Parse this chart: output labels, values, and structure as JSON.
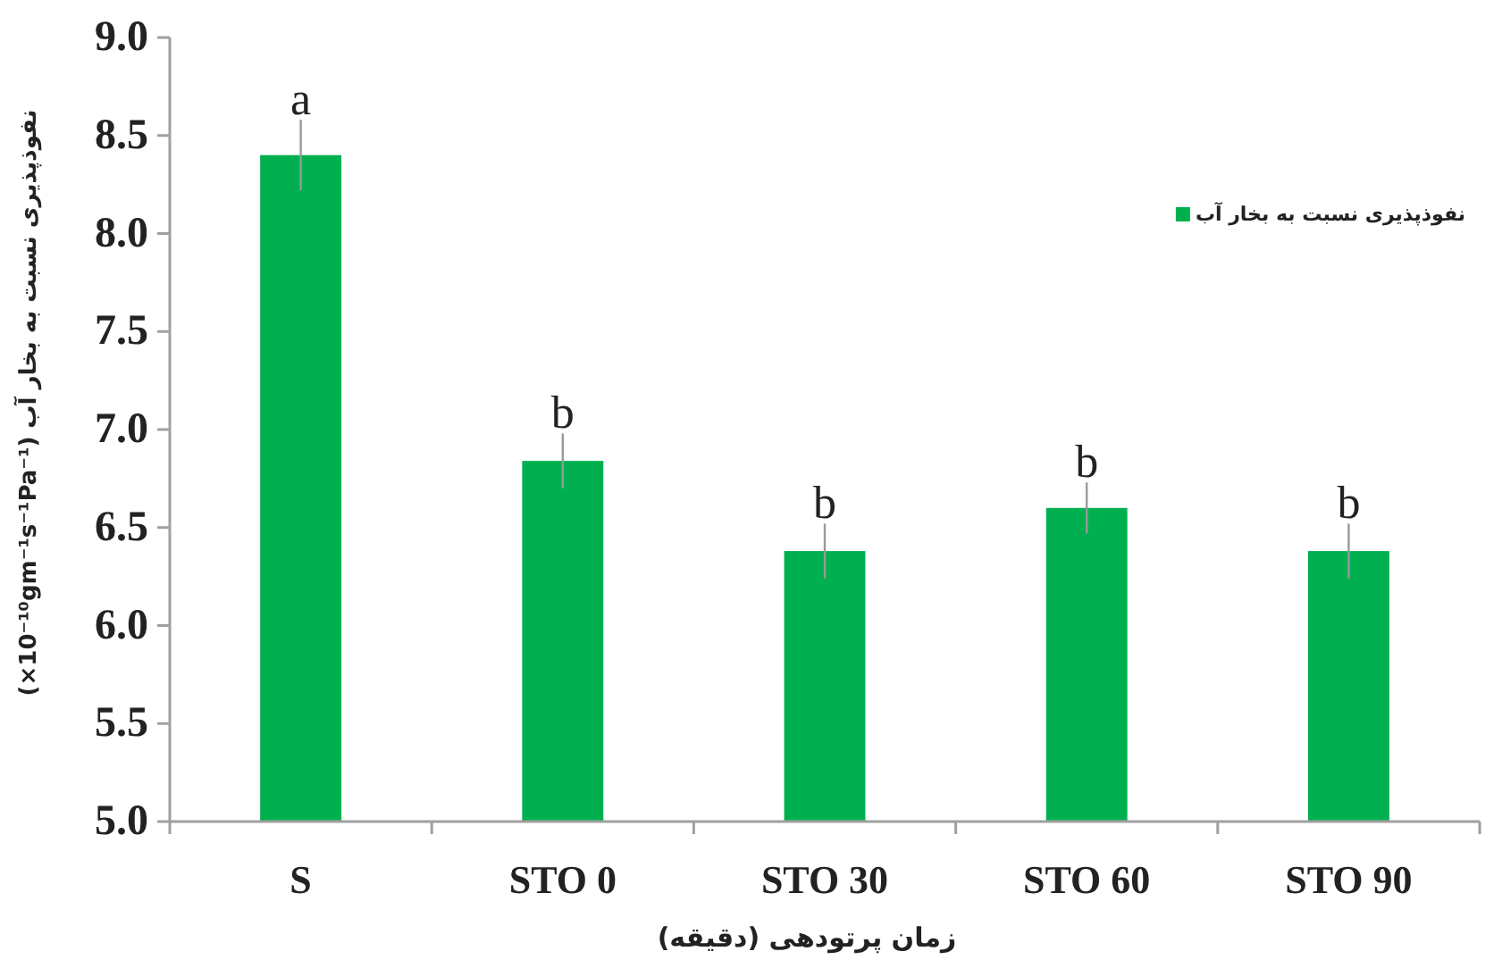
{
  "chart_data": {
    "type": "bar",
    "xlabel": "زمان پرتودهی (دقیقه)",
    "ylabel": "نفوذپذیری نسبت به بخار آب (×10⁻¹⁰gm⁻¹s⁻¹Pa⁻¹)",
    "categories": [
      "S",
      "STO 0",
      "STO 30",
      "STO 60",
      "STO 90"
    ],
    "series": [
      {
        "name": "نفوذپذیری نسبت به بخار آب",
        "color": "#00b050",
        "values": [
          8.4,
          6.84,
          6.38,
          6.6,
          6.38
        ],
        "errors": [
          0.18,
          0.14,
          0.14,
          0.13,
          0.14
        ]
      }
    ],
    "ylim": [
      5.0,
      9.0
    ],
    "yticks": [
      {
        "value": 5.0,
        "label": "5.0"
      },
      {
        "value": 5.5,
        "label": "5.5"
      },
      {
        "value": 6.0,
        "label": "6.0"
      },
      {
        "value": 6.5,
        "label": "6.5"
      },
      {
        "value": 7.0,
        "label": "7.0"
      },
      {
        "value": 7.5,
        "label": "7.5"
      },
      {
        "value": 8.0,
        "label": "8.0"
      },
      {
        "value": 8.5,
        "label": "8.5"
      },
      {
        "value": 9.0,
        "label": "9.0"
      }
    ],
    "annotations": [
      {
        "text": "a",
        "x": "S",
        "y": 8.58
      },
      {
        "text": "b",
        "x": "STO 0",
        "y": 6.98
      },
      {
        "text": "b",
        "x": "STO 30",
        "y": 6.52
      },
      {
        "text": "b",
        "x": "STO 60",
        "y": 6.73
      },
      {
        "text": "b",
        "x": "STO 90",
        "y": 6.52
      }
    ],
    "legend": "top right",
    "grid": false
  }
}
